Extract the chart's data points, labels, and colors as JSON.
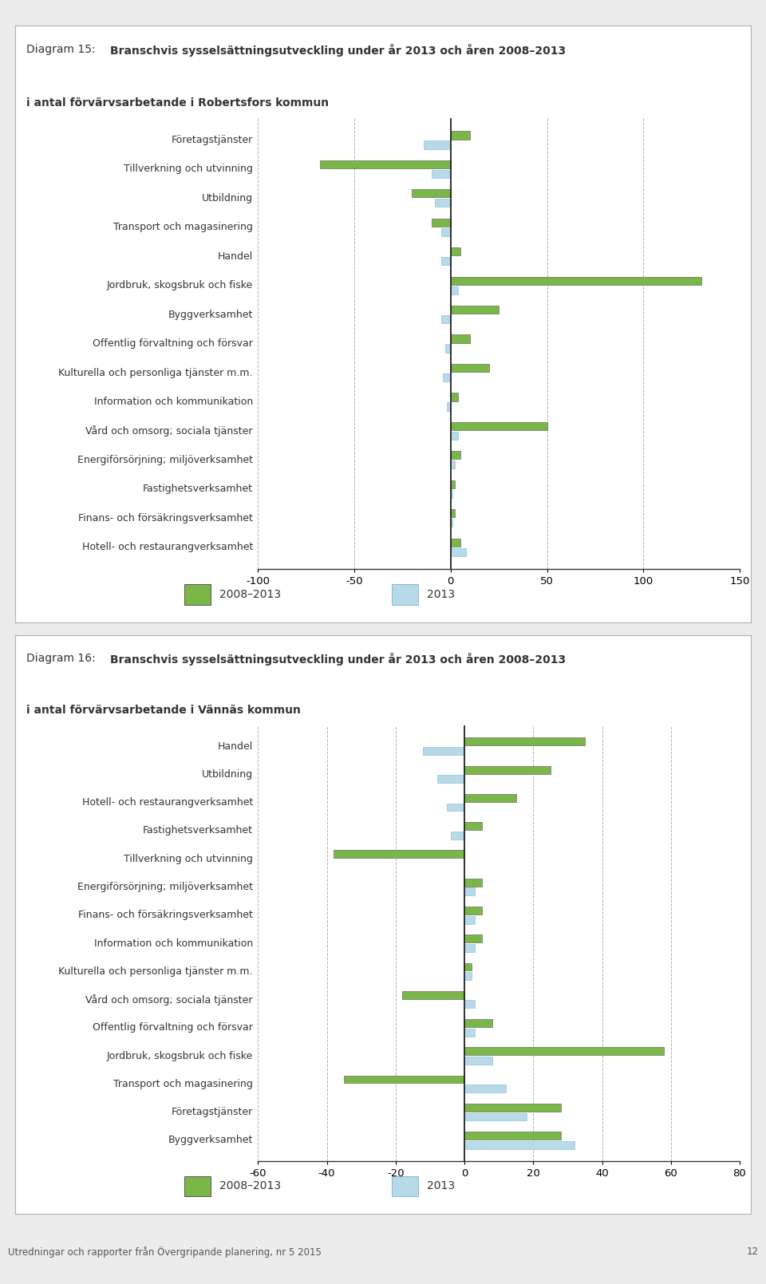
{
  "chart1": {
    "title_plain": "Diagram 15:  ",
    "title_bold": "Branschvis sysselsättningsutveckling under år 2013 och åren 2008–2013",
    "subtitle": "i antal förvärvsarbetande i Robertsfors kommun",
    "categories": [
      "Företagstjänster",
      "Tillverkning och utvinning",
      "Utbildning",
      "Transport och magasinering",
      "Handel",
      "Jordbruk, skogsbruk och fiske",
      "Byggverksamhet",
      "Offentlig förvaltning och försvar",
      "Kulturella och personliga tjänster m.m.",
      "Information och kommunikation",
      "Vård och omsorg; sociala tjänster",
      "Energiförsörjning; miljöverksamhet",
      "Fastighetsverksamhet",
      "Finans- och försäkringsverksamhet",
      "Hotell- och restaurangverksamhet"
    ],
    "values_2008_2013": [
      10,
      -68,
      -20,
      -10,
      5,
      130,
      25,
      10,
      20,
      4,
      50,
      5,
      2,
      2,
      5
    ],
    "values_2013": [
      -14,
      -10,
      -8,
      -5,
      -5,
      4,
      -5,
      -3,
      -4,
      -2,
      4,
      2,
      1,
      1,
      8
    ],
    "xlim": [
      -100,
      150
    ],
    "xticks": [
      -100,
      -50,
      0,
      50,
      100,
      150
    ],
    "color_2008_2013": "#7ab648",
    "color_2013": "#b8d9e8",
    "legend_2008_2013": "2008–2013",
    "legend_2013": "2013"
  },
  "chart2": {
    "title_plain": "Diagram 16:  ",
    "title_bold": "Branschvis sysselsättningsutveckling under år 2013 och åren 2008–2013",
    "subtitle": "i antal förvärvsarbetande i Vännäs kommun",
    "categories": [
      "Handel",
      "Utbildning",
      "Hotell- och restaurangverksamhet",
      "Fastighetsverksamhet",
      "Tillverkning och utvinning",
      "Energiförsörjning; miljöverksamhet",
      "Finans- och försäkringsverksamhet",
      "Information och kommunikation",
      "Kulturella och personliga tjänster m.m.",
      "Vård och omsorg; sociala tjänster",
      "Offentlig förvaltning och försvar",
      "Jordbruk, skogsbruk och fiske",
      "Transport och magasinering",
      "Företagstjänster",
      "Byggverksamhet"
    ],
    "values_2008_2013": [
      35,
      25,
      15,
      5,
      -38,
      5,
      5,
      5,
      2,
      -18,
      8,
      58,
      -35,
      28,
      28
    ],
    "values_2013": [
      -12,
      -8,
      -5,
      -4,
      0,
      3,
      3,
      3,
      2,
      3,
      3,
      8,
      12,
      18,
      32
    ],
    "xlim": [
      -60,
      80
    ],
    "xticks": [
      -60,
      -40,
      -20,
      0,
      20,
      40,
      60,
      80
    ],
    "color_2008_2013": "#7ab648",
    "color_2013": "#b8d9e8",
    "legend_2008_2013": "2008–2013",
    "legend_2013": "2013"
  },
  "page_bg": "#ececec",
  "panel_bg": "#ffffff",
  "footer_text": "Utredningar och rapporter från Övergripande planering, nr 5 2015",
  "footer_page": "12"
}
